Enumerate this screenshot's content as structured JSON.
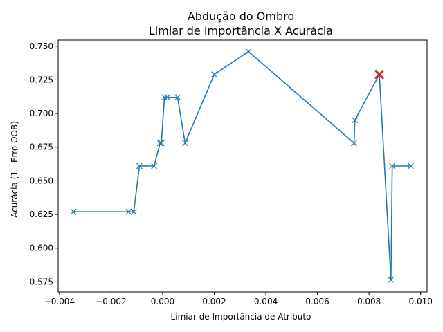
{
  "chart_data": {
    "type": "line",
    "title_lines": [
      "Abdução do Ombro",
      "Limiar de Importância X Acurácia"
    ],
    "xlabel": "Limiar de Importância de Atributo",
    "ylabel": "Acurácia (1 - Erro OOB)",
    "xlim": [
      -0.00405,
      0.01025
    ],
    "ylim": [
      0.5675,
      0.7545
    ],
    "xticks": [
      -0.004,
      -0.002,
      0.0,
      0.002,
      0.004,
      0.006,
      0.008,
      0.01
    ],
    "xtick_labels": [
      "−0.004",
      "−0.002",
      "0.000",
      "0.002",
      "0.004",
      "0.006",
      "0.008",
      "0.010"
    ],
    "yticks": [
      0.575,
      0.6,
      0.625,
      0.65,
      0.675,
      0.7,
      0.725,
      0.75
    ],
    "ytick_labels": [
      "0.575",
      "0.600",
      "0.625",
      "0.650",
      "0.675",
      "0.700",
      "0.725",
      "0.750"
    ],
    "grid": false,
    "series": [
      {
        "marker": "x",
        "color": "#1f77b4",
        "points": [
          [
            -0.00346,
            0.627
          ],
          [
            -0.00132,
            0.627
          ],
          [
            -0.00112,
            0.627
          ],
          [
            -0.0009,
            0.661
          ],
          [
            -0.00033,
            0.661
          ],
          [
            -0.0001,
            0.678
          ],
          [
            -5e-05,
            0.678
          ],
          [
            7e-05,
            0.712
          ],
          [
            0.00018,
            0.712
          ],
          [
            0.00058,
            0.712
          ],
          [
            0.00087,
            0.678
          ],
          [
            0.002,
            0.729
          ],
          [
            0.00333,
            0.746
          ],
          [
            0.00742,
            0.678
          ],
          [
            0.00745,
            0.695
          ],
          [
            0.0084,
            0.729
          ],
          [
            0.00885,
            0.5765
          ],
          [
            0.0089,
            0.661
          ],
          [
            0.00962,
            0.661
          ]
        ]
      }
    ],
    "highlight": {
      "x": 0.0084,
      "y": 0.729,
      "marker": "x",
      "color": "#d62728"
    }
  }
}
